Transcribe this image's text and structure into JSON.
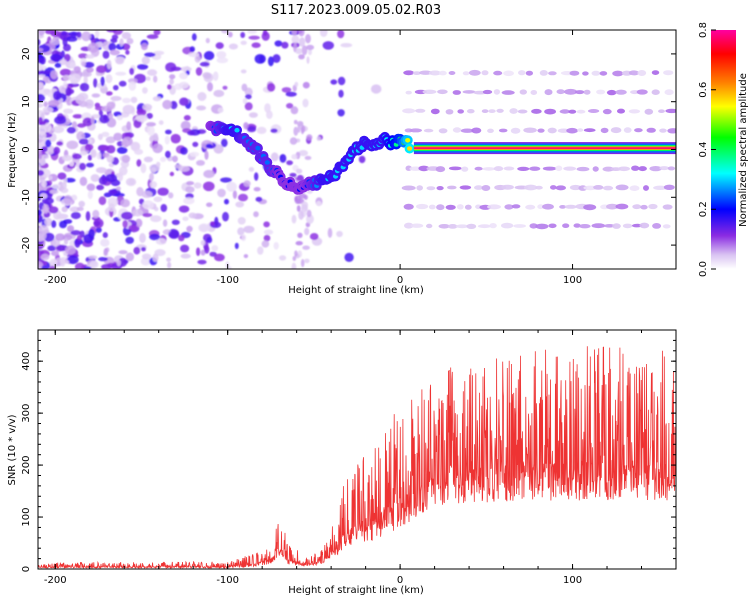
{
  "title": "S117.2023.009.05.02.R03",
  "chart_data": [
    {
      "type": "heatmap",
      "xlabel": "Height of straight line (km)",
      "ylabel": "Frequency (Hz)",
      "xlim": [
        -210,
        160
      ],
      "ylim": [
        -25,
        25
      ],
      "xticks": [
        -200,
        -100,
        0,
        100
      ],
      "yticks": [
        -20,
        -10,
        0,
        10,
        20
      ],
      "colorbar": {
        "label": "Normalized spectral amplitude",
        "range": [
          0.0,
          0.8
        ],
        "ticks": [
          "0.0",
          "0.2",
          "0.4",
          "0.6",
          "0.8"
        ],
        "colors": [
          "#ffffff",
          "#d9c2f2",
          "#8a2be2",
          "#0000ff",
          "#00ffff",
          "#00ff00",
          "#ffff00",
          "#ff8000",
          "#ff0000",
          "#ff00a0"
        ]
      },
      "ridge": {
        "x": [
          -110,
          -100,
          -95,
          -90,
          -85,
          -80,
          -75,
          -70,
          -65,
          -60,
          -55,
          -50,
          -45,
          -40,
          -35,
          -30,
          -25,
          -20,
          -15,
          -10,
          -5,
          0,
          5,
          10,
          20,
          40,
          60,
          80,
          100,
          120,
          140,
          160
        ],
        "y": [
          4.5,
          4.5,
          3.5,
          2,
          0.5,
          -1.5,
          -4,
          -5.5,
          -7,
          -8,
          -7,
          -7,
          -6.5,
          -6,
          -4,
          -2,
          0,
          1.5,
          1,
          2,
          1.5,
          2,
          1,
          0.3,
          0.3,
          0.3,
          0.3,
          0.3,
          0.3,
          0.3,
          0.3,
          0.3
        ],
        "amplitude": [
          0.2,
          0.3,
          0.3,
          0.25,
          0.25,
          0.25,
          0.25,
          0.2,
          0.2,
          0.2,
          0.2,
          0.25,
          0.3,
          0.3,
          0.3,
          0.3,
          0.3,
          0.3,
          0.3,
          0.3,
          0.35,
          0.4,
          0.55,
          0.7,
          0.8,
          0.8,
          0.8,
          0.8,
          0.8,
          0.8,
          0.8,
          0.8
        ]
      },
      "harmonic_bands_hz": [
        -16,
        -12,
        -8,
        -4,
        4,
        8,
        12,
        16
      ],
      "harmonic_start_km": 5
    },
    {
      "type": "line",
      "xlabel": "Height of straight line (km)",
      "ylabel": "SNR (10 * v/v)",
      "xlim": [
        -210,
        160
      ],
      "ylim": [
        0,
        460
      ],
      "xticks": [
        -200,
        -100,
        0,
        100
      ],
      "yticks": [
        0,
        100,
        200,
        300,
        400
      ],
      "color": "#ee3333",
      "envelope": {
        "x": [
          -210,
          -150,
          -100,
          -85,
          -75,
          -70,
          -65,
          -55,
          -45,
          -35,
          -32,
          -25,
          -15,
          -5,
          0,
          10,
          20,
          30,
          50,
          70,
          100,
          130,
          160
        ],
        "baseline": [
          2,
          2,
          2,
          4,
          10,
          25,
          8,
          5,
          10,
          30,
          40,
          50,
          55,
          70,
          80,
          100,
          120,
          125,
          128,
          130,
          132,
          132,
          132
        ],
        "peak": [
          12,
          14,
          14,
          30,
          50,
          110,
          60,
          20,
          40,
          120,
          185,
          200,
          250,
          290,
          320,
          340,
          370,
          390,
          410,
          420,
          430,
          430,
          430
        ]
      }
    }
  ]
}
